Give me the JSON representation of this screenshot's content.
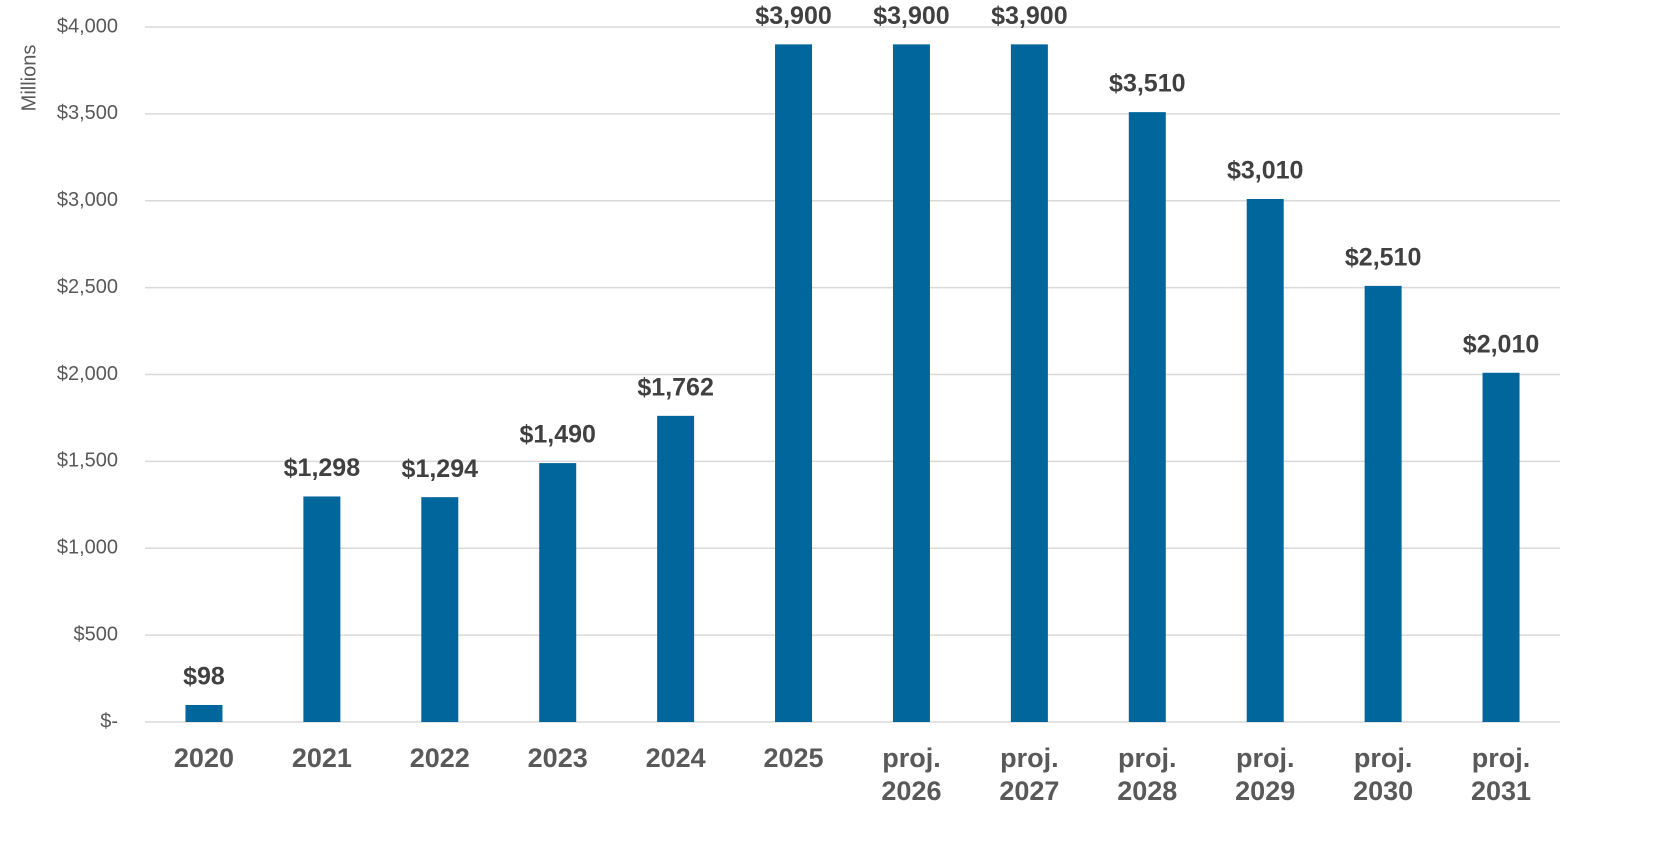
{
  "chart_data": {
    "type": "bar",
    "y_label": "Millions",
    "categories": [
      "2020",
      "2021",
      "2022",
      "2023",
      "2024",
      "2025",
      "proj. 2026",
      "proj. 2027",
      "proj. 2028",
      "proj. 2029",
      "proj. 2030",
      "proj. 2031"
    ],
    "values": [
      98,
      1298,
      1294,
      1490,
      1762,
      3900,
      3900,
      3900,
      3510,
      3010,
      2510,
      2010
    ],
    "value_labels": [
      "$98",
      "$1,298",
      "$1,294",
      "$1,490",
      "$1,762",
      "$3,900",
      "$3,900",
      "$3,900",
      "$3,510",
      "$3,010",
      "$2,510",
      "$2,010"
    ],
    "color": "#00669c",
    "ylim": [
      0,
      4000
    ],
    "yticks": [
      {
        "value": 0,
        "label": "$-"
      },
      {
        "value": 500,
        "label": "$500"
      },
      {
        "value": 1000,
        "label": "$1,000"
      },
      {
        "value": 1500,
        "label": "$1,500"
      },
      {
        "value": 2000,
        "label": "$2,000"
      },
      {
        "value": 2500,
        "label": "$2,500"
      },
      {
        "value": 3000,
        "label": "$3,000"
      },
      {
        "value": 3500,
        "label": "$3,500"
      },
      {
        "value": 4000,
        "label": "$4,000"
      }
    ],
    "grid": true
  }
}
